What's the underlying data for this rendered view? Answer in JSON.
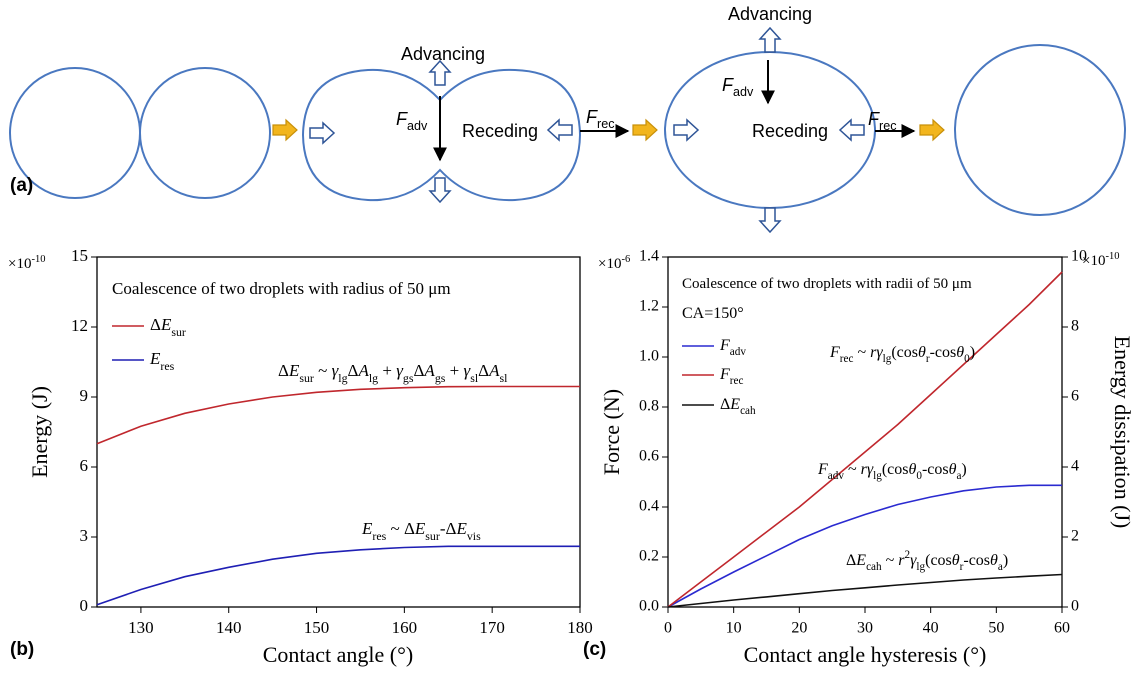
{
  "diagram": {
    "panel_label": "(a)",
    "labels": [
      {
        "parts": [
          "Advancing"
        ]
      },
      {
        "parts": [
          {
            "i": "F"
          },
          {
            "sub": "adv"
          }
        ]
      },
      {
        "parts": [
          "Receding"
        ]
      },
      {
        "parts": [
          {
            "i": "F"
          },
          {
            "sub": "rec"
          }
        ]
      },
      {
        "parts": [
          "Advancing"
        ]
      },
      {
        "parts": [
          {
            "i": "F"
          },
          {
            "sub": "adv"
          }
        ]
      },
      {
        "parts": [
          "Receding"
        ]
      },
      {
        "parts": [
          {
            "i": "F"
          },
          {
            "sub": "rec"
          }
        ]
      }
    ]
  },
  "chart_data": [
    {
      "type": "line",
      "panel_label": "(b)",
      "x_label": "Contact angle (°)",
      "y_label": "Energy (J)",
      "y_multiplier": [
        "×10",
        {
          "sup": "-10"
        }
      ],
      "x": [
        125,
        130,
        135,
        140,
        145,
        150,
        155,
        160,
        165,
        170,
        175,
        180
      ],
      "xlim": [
        125,
        180
      ],
      "xticks": [
        130,
        140,
        150,
        160,
        170,
        180
      ],
      "ylim": [
        0,
        15
      ],
      "yticks": [
        0,
        3,
        6,
        9,
        12,
        15
      ],
      "series": [
        {
          "name": [
            "Δ",
            {
              "i": "E"
            },
            {
              "sub": "sur"
            }
          ],
          "color": "#c0272d",
          "values": [
            7.0,
            7.75,
            8.3,
            8.7,
            9.0,
            9.2,
            9.33,
            9.4,
            9.44,
            9.45,
            9.45,
            9.45
          ]
        },
        {
          "name": [
            {
              "i": "E"
            },
            {
              "sub": "res"
            }
          ],
          "color": "#1f1fb4",
          "values": [
            0.1,
            0.75,
            1.3,
            1.7,
            2.05,
            2.3,
            2.45,
            2.55,
            2.6,
            2.6,
            2.6,
            2.6
          ]
        }
      ],
      "annotations": [
        {
          "parts": [
            "Coalescence of two droplets with radius of 50 μm"
          ]
        },
        {
          "parts": [
            "Δ",
            {
              "i": "E"
            },
            {
              "sub": "sur"
            },
            " ~ ",
            {
              "i": "γ"
            },
            {
              "sub": "lg"
            },
            "Δ",
            {
              "i": "A"
            },
            {
              "sub": "lg"
            },
            " + ",
            {
              "i": "γ"
            },
            {
              "sub": "gs"
            },
            "Δ",
            {
              "i": "A"
            },
            {
              "sub": "gs"
            },
            " + ",
            {
              "i": "γ"
            },
            {
              "sub": "sl"
            },
            "Δ",
            {
              "i": "A"
            },
            {
              "sub": "sl"
            }
          ]
        },
        {
          "parts": [
            {
              "i": "E"
            },
            {
              "sub": "res"
            },
            " ~ Δ",
            {
              "i": "E"
            },
            {
              "sub": "sur"
            },
            "-Δ",
            {
              "i": "E"
            },
            {
              "sub": "vis"
            }
          ]
        }
      ]
    },
    {
      "type": "line",
      "panel_label": "(c)",
      "x_label": "Contact angle hysteresis (°)",
      "y_label": "Force (N)",
      "y2_label": "Energy dissipation (J)",
      "y_multiplier": [
        "×10",
        {
          "sup": "-6"
        }
      ],
      "y2_multiplier": [
        "×10",
        {
          "sup": "-10"
        }
      ],
      "x": [
        0,
        5,
        10,
        15,
        20,
        25,
        30,
        35,
        40,
        45,
        50,
        55,
        60
      ],
      "xlim": [
        0,
        60
      ],
      "xticks": [
        0,
        10,
        20,
        30,
        40,
        50,
        60
      ],
      "ylim": [
        0,
        1.4
      ],
      "yticks": [
        {
          "value": 0,
          "label": "0.0"
        },
        0.2,
        0.4,
        0.6,
        0.8,
        {
          "value": 1,
          "label": "1.0"
        },
        1.2,
        1.4
      ],
      "y2lim": [
        0,
        10
      ],
      "y2ticks": [
        0,
        2,
        4,
        6,
        8,
        10
      ],
      "series": [
        {
          "name": [
            {
              "i": "F"
            },
            {
              "sub": "adv"
            }
          ],
          "color": "#2a2ad0",
          "values": [
            0,
            0.072,
            0.14,
            0.205,
            0.27,
            0.325,
            0.37,
            0.41,
            0.44,
            0.465,
            0.48,
            0.487,
            0.487
          ]
        },
        {
          "name": [
            {
              "i": "F"
            },
            {
              "sub": "rec"
            }
          ],
          "color": "#c0272d",
          "values": [
            0,
            0.1,
            0.2,
            0.3,
            0.4,
            0.51,
            0.62,
            0.73,
            0.85,
            0.97,
            1.09,
            1.21,
            1.34
          ]
        },
        {
          "name": [
            "Δ",
            {
              "i": "E"
            },
            {
              "sub": "cah"
            }
          ],
          "color": "#111111",
          "axis": "y2",
          "values": [
            0,
            0.1,
            0.2,
            0.29,
            0.38,
            0.47,
            0.55,
            0.63,
            0.7,
            0.77,
            0.83,
            0.88,
            0.93
          ]
        }
      ],
      "annotations": [
        {
          "parts": [
            "Coalescence of two droplets with radii of 50 μm"
          ]
        },
        {
          "parts": [
            "CA=150°"
          ]
        },
        {
          "parts": [
            {
              "i": "F"
            },
            {
              "sub": "rec"
            },
            " ~ ",
            {
              "i": "rγ"
            },
            {
              "sub": "lg"
            },
            "(cos",
            {
              "i": "θ"
            },
            {
              "sub": "r"
            },
            "-cos",
            {
              "i": "θ"
            },
            {
              "sub": "0"
            },
            ")"
          ]
        },
        {
          "parts": [
            {
              "i": "F"
            },
            {
              "sub": "adv"
            },
            " ~ ",
            {
              "i": "rγ"
            },
            {
              "sub": "lg"
            },
            "(cos",
            {
              "i": "θ"
            },
            {
              "sub": "0"
            },
            "-cos",
            {
              "i": "θ"
            },
            {
              "sub": "a"
            },
            ")"
          ]
        },
        {
          "parts": [
            "Δ",
            {
              "i": "E"
            },
            {
              "sub": "cah"
            },
            " ~ ",
            {
              "i": "r"
            },
            {
              "sup": "2"
            },
            {
              "i": "γ"
            },
            {
              "sub": "lg"
            },
            "(cos",
            {
              "i": "θ"
            },
            {
              "sub": "r"
            },
            "-cos",
            {
              "i": "θ"
            },
            {
              "sub": "a"
            },
            ")"
          ]
        }
      ]
    }
  ]
}
